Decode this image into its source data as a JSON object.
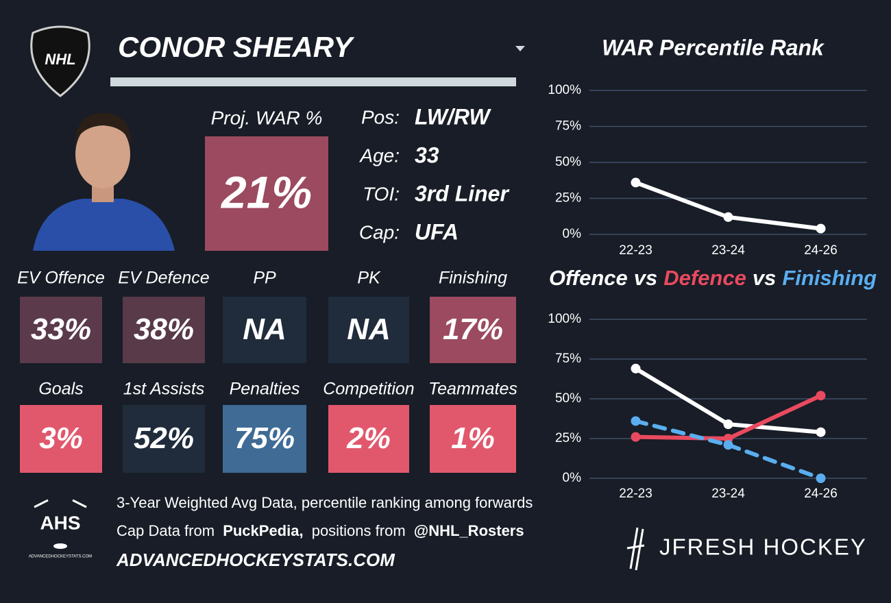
{
  "logo": "NHL",
  "player": {
    "name": "CONOR SHEARY"
  },
  "projection": {
    "label": "Proj. WAR %",
    "value": "21%",
    "color": "#9b4a5f"
  },
  "info": [
    {
      "label": "Pos:",
      "value": "LW/RW"
    },
    {
      "label": "Age:",
      "value": "33"
    },
    {
      "label": "TOI:",
      "value": "3rd Liner"
    },
    {
      "label": "Cap:",
      "value": "UFA"
    }
  ],
  "tiles": [
    [
      {
        "label": "EV Offence",
        "value": "33%",
        "color": "#5b3a4b"
      },
      {
        "label": "EV Defence",
        "value": "38%",
        "color": "#583a49"
      },
      {
        "label": "PP",
        "value": "NA",
        "color": "#202c3b"
      },
      {
        "label": "PK",
        "value": "NA",
        "color": "#202c3b"
      },
      {
        "label": "Finishing",
        "value": "17%",
        "color": "#9b4a5f"
      }
    ],
    [
      {
        "label": "Goals",
        "value": "3%",
        "color": "#e1586d"
      },
      {
        "label": "1st Assists",
        "value": "52%",
        "color": "#202c3b"
      },
      {
        "label": "Penalties",
        "value": "75%",
        "color": "#3f6b95"
      },
      {
        "label": "Competition",
        "value": "2%",
        "color": "#e1586d"
      },
      {
        "label": "Teammates",
        "value": "1%",
        "color": "#e1586d"
      }
    ]
  ],
  "footer": {
    "note": "3-Year Weighted Avg Data, percentile ranking among forwards",
    "credit": [
      "Cap Data from",
      "PuckPedia,",
      "positions from",
      "@NHL_Rosters"
    ],
    "site": "ADVANCEDHOCKEYSTATS.COM",
    "ahs_logo": "AHS",
    "ahs_site": "ADVANCEDHOCKEYSTATS.COM",
    "brand": "JFRESH HOCKEY"
  },
  "chart_data": [
    {
      "type": "line",
      "title": "WAR Percentile Rank",
      "categories": [
        "22-23",
        "23-24",
        "24-26"
      ],
      "series": [
        {
          "name": "WAR",
          "color": "#ffffff",
          "values": [
            36,
            12,
            4
          ]
        }
      ],
      "ylim": [
        0,
        100
      ],
      "yticks": [
        {
          "value": 0,
          "label": "0%"
        },
        {
          "value": 25,
          "label": "25%"
        },
        {
          "value": 50,
          "label": "50%"
        },
        {
          "value": 75,
          "label": "75%"
        },
        {
          "value": 100,
          "label": "100%"
        }
      ],
      "grid": true
    },
    {
      "type": "line",
      "title_separator": "vs",
      "categories": [
        "22-23",
        "23-24",
        "24-26"
      ],
      "series": [
        {
          "name": "Offence",
          "color": "#ffffff",
          "values": [
            69,
            34,
            29
          ]
        },
        {
          "name": "Defence",
          "color": "#e94a5f",
          "values": [
            26,
            25,
            52
          ]
        },
        {
          "name": "Finishing",
          "color": "#5aaef0",
          "values": [
            36,
            21,
            0
          ],
          "dashed": true
        }
      ],
      "ylim": [
        0,
        100
      ],
      "yticks": [
        {
          "value": 0,
          "label": "0%"
        },
        {
          "value": 25,
          "label": "25%"
        },
        {
          "value": 50,
          "label": "50%"
        },
        {
          "value": 75,
          "label": "75%"
        },
        {
          "value": 100,
          "label": "100%"
        }
      ],
      "grid": true
    }
  ]
}
